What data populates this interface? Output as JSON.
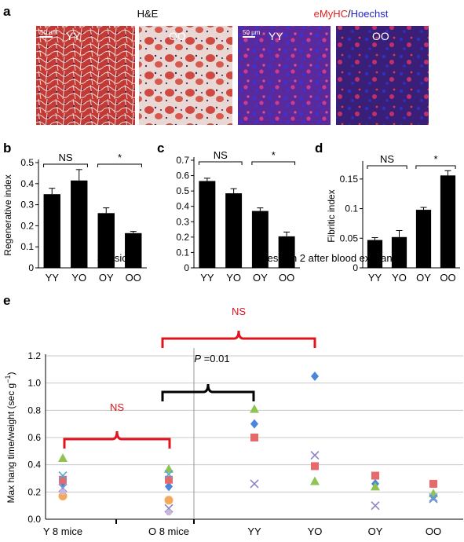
{
  "panels": {
    "a": {
      "label": "a",
      "he_title": "H&E",
      "if_title_part1": "eMyHC",
      "if_title_sep": "/",
      "if_title_part2": "Hoechst",
      "scale_bar": "50 µm",
      "tiles": [
        "YY",
        "OO",
        "YY",
        "OO"
      ]
    },
    "b": {
      "label": "b",
      "ns": "NS",
      "star": "*"
    },
    "c": {
      "label": "c",
      "ns": "NS",
      "star": "*"
    },
    "d": {
      "label": "d",
      "ns": "NS",
      "star": "*"
    },
    "e": {
      "label": "e",
      "session1": "Session 1",
      "session2": "Session 2 after blood exchange",
      "ns": "NS",
      "p_prefix": "P",
      "p_suffix": " =0.01"
    }
  },
  "colors": {
    "bar": "#000000",
    "red_bracket": "#e0141e",
    "blue_diamond": "#4a86d9",
    "red_square": "#e8696a",
    "green_triangle": "#8fc454",
    "purple_x": "#8c84c4",
    "orange_circle": "#f4a95a",
    "light_blue_x": "#55a8d8",
    "emyhc_red": "#e02020",
    "hoechst_blue": "#2020d0"
  },
  "chart_data": [
    {
      "id": "b",
      "type": "bar",
      "categories": [
        "YY",
        "YO",
        "OY",
        "OO"
      ],
      "values": [
        0.35,
        0.415,
        0.26,
        0.165
      ],
      "errors": [
        0.028,
        0.052,
        0.025,
        0.008
      ],
      "ylabel": "Regenerative index",
      "ylim": [
        0,
        0.5
      ],
      "yticks": [
        "0",
        "0.1",
        "0.2",
        "0.3",
        "0.4",
        "0.5"
      ]
    },
    {
      "id": "c",
      "type": "bar",
      "categories": [
        "YY",
        "YO",
        "OY",
        "OO"
      ],
      "values": [
        0.565,
        0.485,
        0.37,
        0.205
      ],
      "errors": [
        0.018,
        0.03,
        0.02,
        0.028
      ],
      "ylabel": "",
      "ylim": [
        0,
        0.7
      ],
      "yticks": [
        "0",
        "0.1",
        "0.2",
        "0.3",
        "0.4",
        "0.5",
        "0.6",
        "0.7"
      ]
    },
    {
      "id": "d",
      "type": "bar",
      "categories": [
        "YY",
        "YO",
        "OY",
        "OO"
      ],
      "values": [
        0.047,
        0.052,
        0.098,
        0.156
      ],
      "errors": [
        0.004,
        0.011,
        0.004,
        0.008
      ],
      "ylabel": "Fibritic index",
      "ylim": [
        0,
        0.175
      ],
      "yticks": [
        "0",
        "0.05",
        "0.1",
        "0.15"
      ]
    },
    {
      "id": "e",
      "type": "scatter",
      "categories": [
        "Y 8 mice",
        "O 8 mice",
        "YY",
        "YO",
        "OY",
        "OO"
      ],
      "ylabel": "Max hang time/weight (sec g",
      "ylabel_sup": "−1",
      "ylabel_end": ")",
      "ylim": [
        0,
        1.2
      ],
      "yticks": [
        "0.0",
        "0.2",
        "0.4",
        "0.6",
        "0.8",
        "1.0",
        "1.2"
      ],
      "series": [
        {
          "marker": "diamond",
          "values": [
            0.27,
            0.24,
            0.7,
            1.05,
            0.26,
            0.17
          ]
        },
        {
          "marker": "square",
          "values": [
            0.29,
            0.29,
            0.6,
            0.39,
            0.32,
            0.26
          ]
        },
        {
          "marker": "triangle",
          "values": [
            0.45,
            0.37,
            0.81,
            0.28,
            0.24,
            0.19
          ]
        },
        {
          "marker": "x",
          "values": [
            0.23,
            0.08,
            0.26,
            0.47,
            0.1,
            0.15
          ]
        },
        {
          "marker": "x_light",
          "values": [
            0.32,
            0.33,
            null,
            null,
            null,
            0.16
          ]
        },
        {
          "marker": "circle",
          "values": [
            0.17,
            0.14,
            null,
            null,
            null,
            null
          ]
        },
        {
          "marker": "circle_small",
          "values": [
            0.2,
            0.05,
            null,
            null,
            null,
            null
          ]
        }
      ]
    }
  ]
}
